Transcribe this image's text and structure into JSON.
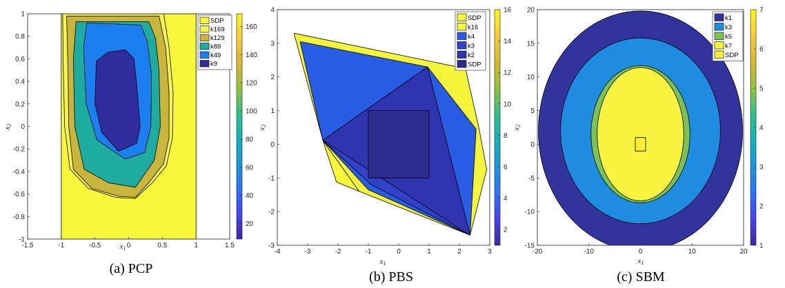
{
  "colors": {
    "SDP": "#f8f739",
    "k169": "#f6f550",
    "k129": "#c9b43c",
    "k89": "#1eaca0",
    "k49": "#1b7ff0",
    "k9": "#302c9e",
    "k16": "#f5f53a",
    "k4": "#2a5de6",
    "k3": "#3343c9",
    "k2": "#2f35b0",
    "pbsSDP": "#2e2b8f",
    "sk1": "#32339d",
    "sk3": "#1e8ce0",
    "sk5": "#7cc058",
    "sk7": "#f8f33e",
    "skSDP": "#fbef3a"
  },
  "chart_data": [
    {
      "type": "area",
      "subtitle": "(a) PCP",
      "xlabel": "x1",
      "ylabel": "x2",
      "xlim": [
        -1.5,
        1.5
      ],
      "ylim": [
        -1,
        1
      ],
      "xticks": [
        "-1.5",
        "-1",
        "-0.5",
        "0",
        "0.5",
        "1",
        "1.5"
      ],
      "yticks": [
        "-1",
        "-0.8",
        "-0.6",
        "-0.4",
        "-0.2",
        "0",
        "0.2",
        "0.4",
        "0.6",
        "0.8",
        "1"
      ],
      "legend": [
        "SDP",
        "k169",
        "k129",
        "k89",
        "k49",
        "k9"
      ],
      "legend_position": "top-right",
      "colorbar": {
        "min": 9,
        "max": 169,
        "ticks": [
          "20",
          "40",
          "60",
          "80",
          "100",
          "120",
          "140",
          "160"
        ]
      },
      "regions": [
        {
          "name": "SDP",
          "points": [
            [
              -1,
              -1
            ],
            [
              1,
              -1
            ],
            [
              1,
              1
            ],
            [
              -1,
              1
            ]
          ]
        },
        {
          "name": "k169",
          "points": [
            [
              -0.98,
              1
            ],
            [
              -0.88,
              1
            ],
            [
              0.52,
              1
            ],
            [
              0.6,
              0.7
            ],
            [
              0.66,
              0.3
            ],
            [
              0.65,
              -0.1
            ],
            [
              0.56,
              -0.35
            ],
            [
              0.35,
              -0.5
            ],
            [
              0.1,
              -0.64
            ],
            [
              -0.2,
              -0.63
            ],
            [
              -0.6,
              -0.55
            ],
            [
              -0.87,
              -0.38
            ],
            [
              -0.95,
              0
            ],
            [
              -0.97,
              0.5
            ]
          ]
        },
        {
          "name": "k129",
          "points": [
            [
              -0.92,
              0.98
            ],
            [
              0.45,
              0.98
            ],
            [
              0.55,
              0.7
            ],
            [
              0.6,
              0.3
            ],
            [
              0.6,
              -0.1
            ],
            [
              0.52,
              -0.33
            ],
            [
              0.3,
              -0.5
            ],
            [
              0.1,
              -0.63
            ],
            [
              -0.15,
              -0.62
            ],
            [
              -0.55,
              -0.55
            ],
            [
              -0.82,
              -0.38
            ],
            [
              -0.89,
              0
            ],
            [
              -0.9,
              0.5
            ]
          ]
        },
        {
          "name": "k89",
          "points": [
            [
              -0.78,
              0.93
            ],
            [
              0.3,
              0.93
            ],
            [
              0.4,
              0.78
            ],
            [
              0.45,
              0.5
            ],
            [
              0.47,
              0
            ],
            [
              0.38,
              -0.3
            ],
            [
              0.1,
              -0.54
            ],
            [
              -0.3,
              -0.5
            ],
            [
              -0.66,
              -0.38
            ],
            [
              -0.8,
              0
            ],
            [
              -0.82,
              0.6
            ]
          ]
        },
        {
          "name": "k49",
          "points": [
            [
              -0.62,
              0.92
            ],
            [
              0.18,
              0.9
            ],
            [
              0.28,
              0.75
            ],
            [
              0.34,
              0.45
            ],
            [
              0.33,
              0
            ],
            [
              0.24,
              -0.23
            ],
            [
              -0.05,
              -0.29
            ],
            [
              -0.47,
              -0.12
            ],
            [
              -0.63,
              0.2
            ],
            [
              -0.67,
              0.7
            ]
          ]
        },
        {
          "name": "k9",
          "points": [
            [
              -0.3,
              0.66
            ],
            [
              -0.05,
              0.68
            ],
            [
              0.08,
              0.6
            ],
            [
              0.13,
              0.3
            ],
            [
              0.17,
              0
            ],
            [
              0.12,
              -0.15
            ],
            [
              -0.15,
              -0.22
            ],
            [
              -0.4,
              -0.05
            ],
            [
              -0.5,
              0.2
            ],
            [
              -0.48,
              0.58
            ]
          ]
        }
      ]
    },
    {
      "type": "area",
      "subtitle": "(b) PBS",
      "xlabel": "x1",
      "ylabel": "x2",
      "xlim": [
        -4,
        3
      ],
      "ylim": [
        -3,
        4
      ],
      "xticks": [
        "-4",
        "-3",
        "-2",
        "-1",
        "0",
        "1",
        "2",
        "3"
      ],
      "yticks": [
        "-3",
        "-2",
        "-1",
        "0",
        "1",
        "2",
        "3",
        "4"
      ],
      "legend": [
        "SDP",
        "k16",
        "k4",
        "k3",
        "k2",
        "SDP"
      ],
      "legend_position": "top-right",
      "colorbar": {
        "min": 1,
        "max": 16,
        "ticks": [
          "2",
          "4",
          "6",
          "8",
          "10",
          "12",
          "14",
          "16"
        ]
      },
      "regions": [
        {
          "name": "k16",
          "points": [
            [
              -2.5,
              0.12
            ],
            [
              -2.05,
              -1.12
            ],
            [
              -1.3,
              -1.4
            ]
          ]
        },
        {
          "name": "k4",
          "points": [
            [
              -3.45,
              3.3
            ],
            [
              2.2,
              2.25
            ],
            [
              2.65,
              0.45
            ],
            [
              2.9,
              -0.75
            ],
            [
              2.35,
              -2.7
            ],
            [
              -1.3,
              -1.4
            ],
            [
              -2.5,
              0.12
            ]
          ]
        },
        {
          "name": "k3",
          "points": [
            [
              -3.25,
              3.05
            ],
            [
              0.95,
              2.3
            ],
            [
              2.55,
              0.45
            ],
            [
              2.35,
              -2.7
            ],
            [
              -1.0,
              -1.35
            ],
            [
              -2.5,
              0.12
            ]
          ]
        },
        {
          "name": "k2",
          "points": [
            [
              -2.5,
              0.12
            ],
            [
              0.95,
              2.3
            ],
            [
              2.35,
              -2.7
            ],
            [
              -0.9,
              -1.2
            ]
          ]
        },
        {
          "name": "SDP",
          "points": [
            [
              -2.5,
              0.12
            ],
            [
              0.95,
              2.3
            ],
            [
              2.35,
              -2.7
            ]
          ]
        },
        {
          "name": "SDP",
          "points": [
            [
              -1,
              -1
            ],
            [
              1,
              -1
            ],
            [
              1,
              1
            ],
            [
              -1,
              1
            ]
          ]
        }
      ]
    },
    {
      "type": "area",
      "subtitle": "(c) SBM",
      "xlabel": "x1",
      "ylabel": "x2",
      "xlim": [
        -20,
        20
      ],
      "ylim": [
        -15,
        20
      ],
      "xticks": [
        "-20",
        "-10",
        "0",
        "10",
        "20"
      ],
      "yticks": [
        "-15",
        "-10",
        "-5",
        "0",
        "5",
        "10",
        "15",
        "20"
      ],
      "legend": [
        "k1",
        "k3",
        "k5",
        "k7",
        "SDP"
      ],
      "legend_position": "top-right",
      "colorbar": {
        "min": 1,
        "max": 7,
        "ticks": [
          "1",
          "2",
          "3",
          "4",
          "5",
          "6",
          "7"
        ]
      },
      "ellipses": [
        {
          "name": "k1",
          "cx": 0,
          "cy": 2,
          "rx": 19.8,
          "ry": 17.8
        },
        {
          "name": "k3",
          "cx": 0,
          "cy": 2,
          "rx": 15.5,
          "ry": 13.8
        },
        {
          "name": "k5",
          "cx": 0,
          "cy": 1.5,
          "rx": 9.6,
          "ry": 10.2
        },
        {
          "name": "k7",
          "cx": 0,
          "cy": 1.5,
          "rx": 8.4,
          "ry": 9.9
        }
      ],
      "rects": [
        {
          "name": "SDP",
          "points": [
            [
              -1,
              -1
            ],
            [
              1,
              -1
            ],
            [
              1,
              1
            ],
            [
              -1,
              1
            ]
          ]
        }
      ]
    }
  ]
}
